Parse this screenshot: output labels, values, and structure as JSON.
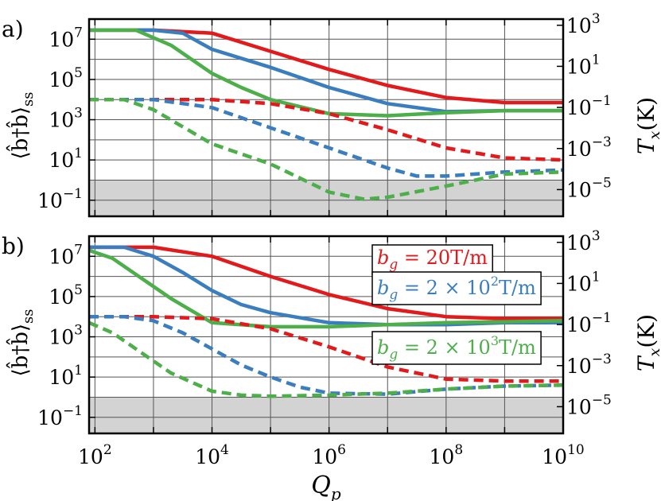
{
  "colors": {
    "red": "#e31a1c",
    "blue": "#3a7ebf",
    "green": "#4daf4a",
    "shade": "#d3d3d3"
  },
  "x_axis": {
    "label_main": "Q",
    "label_sub": "p",
    "ticks": [
      {
        "value": 2,
        "base": "10",
        "exp": "2"
      },
      {
        "value": 4,
        "base": "10",
        "exp": "4"
      },
      {
        "value": 6,
        "base": "10",
        "exp": "6"
      },
      {
        "value": 8,
        "base": "10",
        "exp": "8"
      },
      {
        "value": 10,
        "base": "10",
        "exp": "10"
      }
    ]
  },
  "left_axis": {
    "label": "⟨b̂†b̂⟩",
    "label_sub": "ss",
    "ticks": [
      {
        "value": 7,
        "base": "10",
        "exp": "7"
      },
      {
        "value": 5,
        "base": "10",
        "exp": "5"
      },
      {
        "value": 3,
        "base": "10",
        "exp": "3"
      },
      {
        "value": 1,
        "base": "10",
        "exp": "1"
      },
      {
        "value": -1,
        "base": "10",
        "exp": "−1"
      }
    ]
  },
  "right_axis": {
    "label_main": "T",
    "label_sub": "x",
    "label_unit": "(K)",
    "ticks": [
      {
        "value": 3,
        "base": "10",
        "exp": "3"
      },
      {
        "value": 1,
        "base": "10",
        "exp": "1"
      },
      {
        "value": -1,
        "base": "10",
        "exp": "−1"
      },
      {
        "value": -3,
        "base": "10",
        "exp": "−3"
      },
      {
        "value": -5,
        "base": "10",
        "exp": "−5"
      }
    ]
  },
  "chart_data": [
    {
      "type": "line",
      "panel_label": "a)",
      "log_x": true,
      "log_y": true,
      "xlim_log10": [
        1.9,
        10
      ],
      "ylim_log10": [
        -1.8,
        8
      ],
      "right_ylim_log10": [
        -6.3,
        3.3
      ],
      "grid": true,
      "shaded_below_log10": 0,
      "series": [
        {
          "color": "red",
          "style": "solid",
          "x_log10": [
            1.9,
            3,
            4,
            5,
            6,
            7,
            8,
            9,
            10
          ],
          "y_log10": [
            7.45,
            7.45,
            7.3,
            6.4,
            5.5,
            4.7,
            4.1,
            3.85,
            3.85
          ]
        },
        {
          "color": "blue",
          "style": "solid",
          "x_log10": [
            1.9,
            3,
            3.5,
            4,
            5,
            6,
            7,
            8,
            9,
            10
          ],
          "y_log10": [
            7.45,
            7.45,
            7.3,
            6.5,
            5.6,
            4.6,
            3.8,
            3.4,
            3.45,
            3.45
          ]
        },
        {
          "color": "green",
          "style": "solid",
          "x_log10": [
            1.9,
            2.7,
            3.3,
            4,
            4.5,
            5,
            6,
            7,
            8,
            9,
            10
          ],
          "y_log10": [
            7.45,
            7.45,
            6.7,
            5.3,
            4.6,
            4.0,
            3.3,
            3.2,
            3.35,
            3.45,
            3.45
          ]
        },
        {
          "color": "red",
          "style": "dashed",
          "x_log10": [
            1.9,
            3,
            4,
            5,
            6,
            7,
            8,
            9,
            10
          ],
          "y_log10": [
            4.0,
            4.0,
            4.0,
            3.8,
            3.3,
            2.5,
            1.6,
            1.1,
            1.0
          ]
        },
        {
          "color": "blue",
          "style": "dashed",
          "x_log10": [
            1.9,
            3,
            4,
            5,
            6,
            7,
            7.5,
            8,
            9,
            10
          ],
          "y_log10": [
            4.0,
            4.0,
            3.6,
            2.6,
            1.6,
            0.6,
            0.2,
            0.2,
            0.4,
            0.5
          ]
        },
        {
          "color": "green",
          "style": "dashed",
          "x_log10": [
            1.9,
            2.5,
            3,
            4,
            5,
            6,
            6.6,
            7,
            8,
            9,
            10
          ],
          "y_log10": [
            4.0,
            4.0,
            3.5,
            1.8,
            0.8,
            -0.6,
            -0.95,
            -0.85,
            -0.3,
            0.3,
            0.4
          ]
        }
      ]
    },
    {
      "type": "line",
      "panel_label": "b)",
      "log_x": true,
      "log_y": true,
      "xlim_log10": [
        1.9,
        10
      ],
      "ylim_log10": [
        -1.8,
        8
      ],
      "right_ylim_log10": [
        -6.3,
        3.3
      ],
      "grid": true,
      "shaded_below_log10": 0,
      "legend_placement": "right",
      "series": [
        {
          "name": "b_g = 20T/m",
          "legend_main": "b",
          "legend_sub": "g",
          "legend_rest": " = 20T/m",
          "legend_exp": "",
          "legend_tail": "",
          "color": "red",
          "style": "solid",
          "x_log10": [
            1.9,
            3,
            4,
            5,
            6,
            7,
            8,
            9,
            10
          ],
          "y_log10": [
            7.45,
            7.45,
            7.0,
            6.0,
            5.1,
            4.4,
            4.0,
            3.9,
            3.9
          ]
        },
        {
          "name": "b_g = 2×10²T/m",
          "legend_main": "b",
          "legend_sub": "g",
          "legend_rest": " = 2 × 10",
          "legend_exp": "2",
          "legend_tail": "T/m",
          "color": "blue",
          "style": "solid",
          "x_log10": [
            1.9,
            2.5,
            3,
            3.5,
            4,
            4.5,
            5,
            6,
            7,
            8,
            9,
            10
          ],
          "y_log10": [
            7.45,
            7.45,
            7.0,
            6.2,
            5.3,
            4.6,
            4.2,
            3.7,
            3.6,
            3.6,
            3.7,
            3.7
          ]
        },
        {
          "name": "b_g = 2×10³T/m",
          "legend_main": "b",
          "legend_sub": "g",
          "legend_rest": " = 2 × 10",
          "legend_exp": "3",
          "legend_tail": "T/m",
          "color": "green",
          "style": "solid",
          "x_log10": [
            1.9,
            2.3,
            2.8,
            3.3,
            4,
            5,
            6,
            7,
            8,
            9,
            10
          ],
          "y_log10": [
            7.3,
            6.9,
            5.9,
            4.9,
            3.7,
            3.5,
            3.5,
            3.6,
            3.7,
            3.75,
            3.8
          ]
        },
        {
          "color": "red",
          "style": "dashed",
          "x_log10": [
            1.9,
            3,
            4,
            5,
            6,
            7,
            8,
            9,
            10
          ],
          "y_log10": [
            4.0,
            4.0,
            3.9,
            3.4,
            2.5,
            1.5,
            0.9,
            0.8,
            0.8
          ]
        },
        {
          "color": "blue",
          "style": "dashed",
          "x_log10": [
            1.9,
            2.5,
            3,
            3.5,
            4,
            4.5,
            5,
            5.5,
            6,
            7,
            8,
            9,
            10
          ],
          "y_log10": [
            4.0,
            4.0,
            3.8,
            3.2,
            2.4,
            1.6,
            1.0,
            0.5,
            0.2,
            0.15,
            0.4,
            0.55,
            0.6
          ]
        },
        {
          "color": "green",
          "style": "dashed",
          "x_log10": [
            1.9,
            2.3,
            2.8,
            3.3,
            4,
            4.5,
            5,
            6,
            7,
            8,
            9,
            10
          ],
          "y_log10": [
            3.7,
            3.2,
            2.2,
            1.2,
            0.3,
            0.1,
            0.05,
            0.1,
            0.2,
            0.4,
            0.55,
            0.6
          ]
        }
      ]
    }
  ]
}
